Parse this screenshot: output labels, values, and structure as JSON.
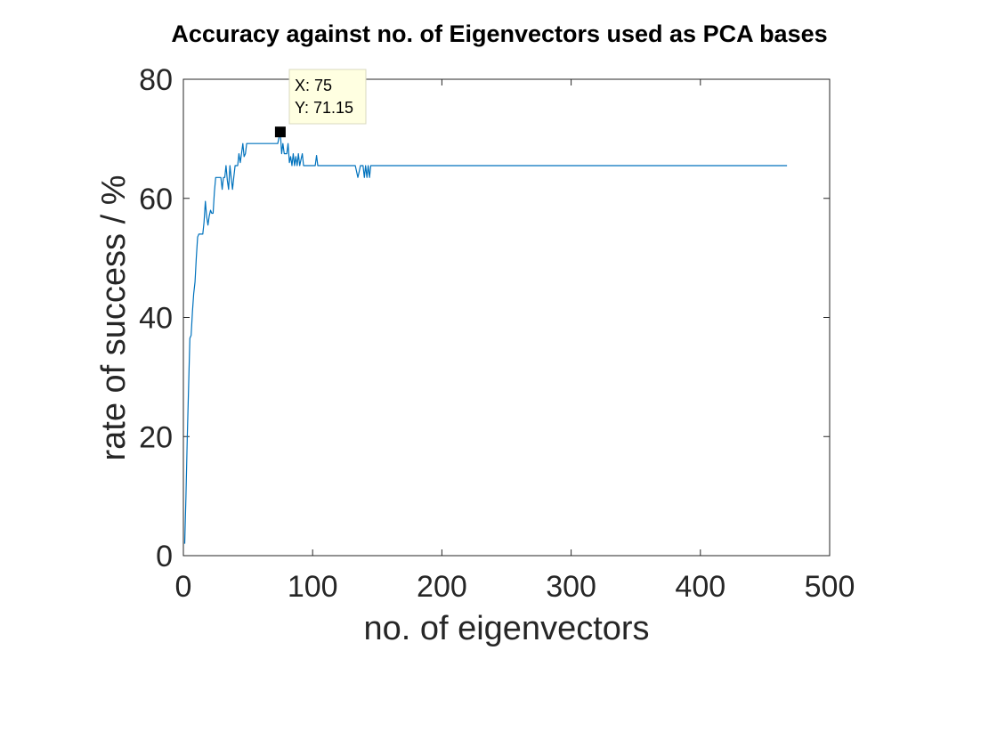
{
  "chart_data": {
    "type": "line",
    "title": "Accuracy against no. of Eigenvectors used as PCA bases",
    "xlabel": "no. of eigenvectors",
    "ylabel": "rate of success / %",
    "xlim": [
      0,
      500
    ],
    "ylim": [
      0,
      80
    ],
    "xticks": [
      "0",
      "100",
      "200",
      "300",
      "400",
      "500"
    ],
    "yticks": [
      "0",
      "20",
      "40",
      "60",
      "80"
    ],
    "grid": false,
    "line_color": "#0072BD",
    "series": [
      {
        "x": [
          1,
          2,
          3,
          4,
          5,
          6,
          7,
          8,
          9,
          10,
          11,
          12,
          13,
          14,
          15,
          16,
          17,
          18,
          19,
          20,
          21,
          22,
          23,
          24,
          25,
          26,
          27,
          28,
          29,
          30,
          31,
          32,
          33,
          34,
          35,
          36,
          37,
          38,
          39,
          40,
          41,
          42,
          43,
          44,
          45,
          46,
          47,
          48,
          49,
          50,
          52,
          55,
          60,
          65,
          70,
          72,
          73,
          74,
          75,
          76,
          77,
          78,
          79,
          80,
          81,
          82,
          83,
          84,
          85,
          86,
          87,
          88,
          89,
          90,
          91,
          92,
          93,
          94,
          95,
          96,
          97,
          98,
          99,
          100,
          101,
          102,
          103,
          104,
          105,
          110,
          120,
          130,
          133,
          134,
          135,
          136,
          137,
          138,
          139,
          140,
          141,
          142,
          143,
          144,
          145,
          146,
          150,
          200,
          250,
          300,
          350,
          400,
          450,
          467
        ],
        "y": [
          2,
          10,
          20,
          28,
          36.5,
          37,
          41,
          44,
          46,
          50,
          53.5,
          54,
          54,
          54,
          54,
          56,
          59.5,
          57,
          55.5,
          57,
          58,
          57.5,
          57.5,
          61,
          63.5,
          63.5,
          63.5,
          63.5,
          63.5,
          61.5,
          63.5,
          63.5,
          65.5,
          63,
          61.5,
          65.5,
          63.5,
          61.5,
          63.5,
          65.5,
          65.5,
          65.5,
          67.5,
          66,
          67.5,
          69.2,
          67,
          67.5,
          69.2,
          69.2,
          69.2,
          69.2,
          69.2,
          69.2,
          69.2,
          69.2,
          69.2,
          70.2,
          71.15,
          67.5,
          69.2,
          67.5,
          67.5,
          67.5,
          69.2,
          66,
          67,
          65.5,
          67.5,
          65.5,
          67,
          65.5,
          67.5,
          65.5,
          66.5,
          67.5,
          65.5,
          65.5,
          65.5,
          65.5,
          65.5,
          65.5,
          65.5,
          65.5,
          65.5,
          65.5,
          67.2,
          65.5,
          65.5,
          65.5,
          65.5,
          65.5,
          65.5,
          64.5,
          63.5,
          64.5,
          65.5,
          65.5,
          65.5,
          63.5,
          65.5,
          63.5,
          65.5,
          63.5,
          65.5,
          65.5,
          65.5,
          65.5,
          65.5,
          65.5,
          65.5,
          65.5,
          65.5,
          65.5
        ]
      }
    ],
    "datatip": {
      "x_text": "X: 75",
      "y_text": "Y: 71.15",
      "x": 75,
      "y": 71.15
    }
  }
}
